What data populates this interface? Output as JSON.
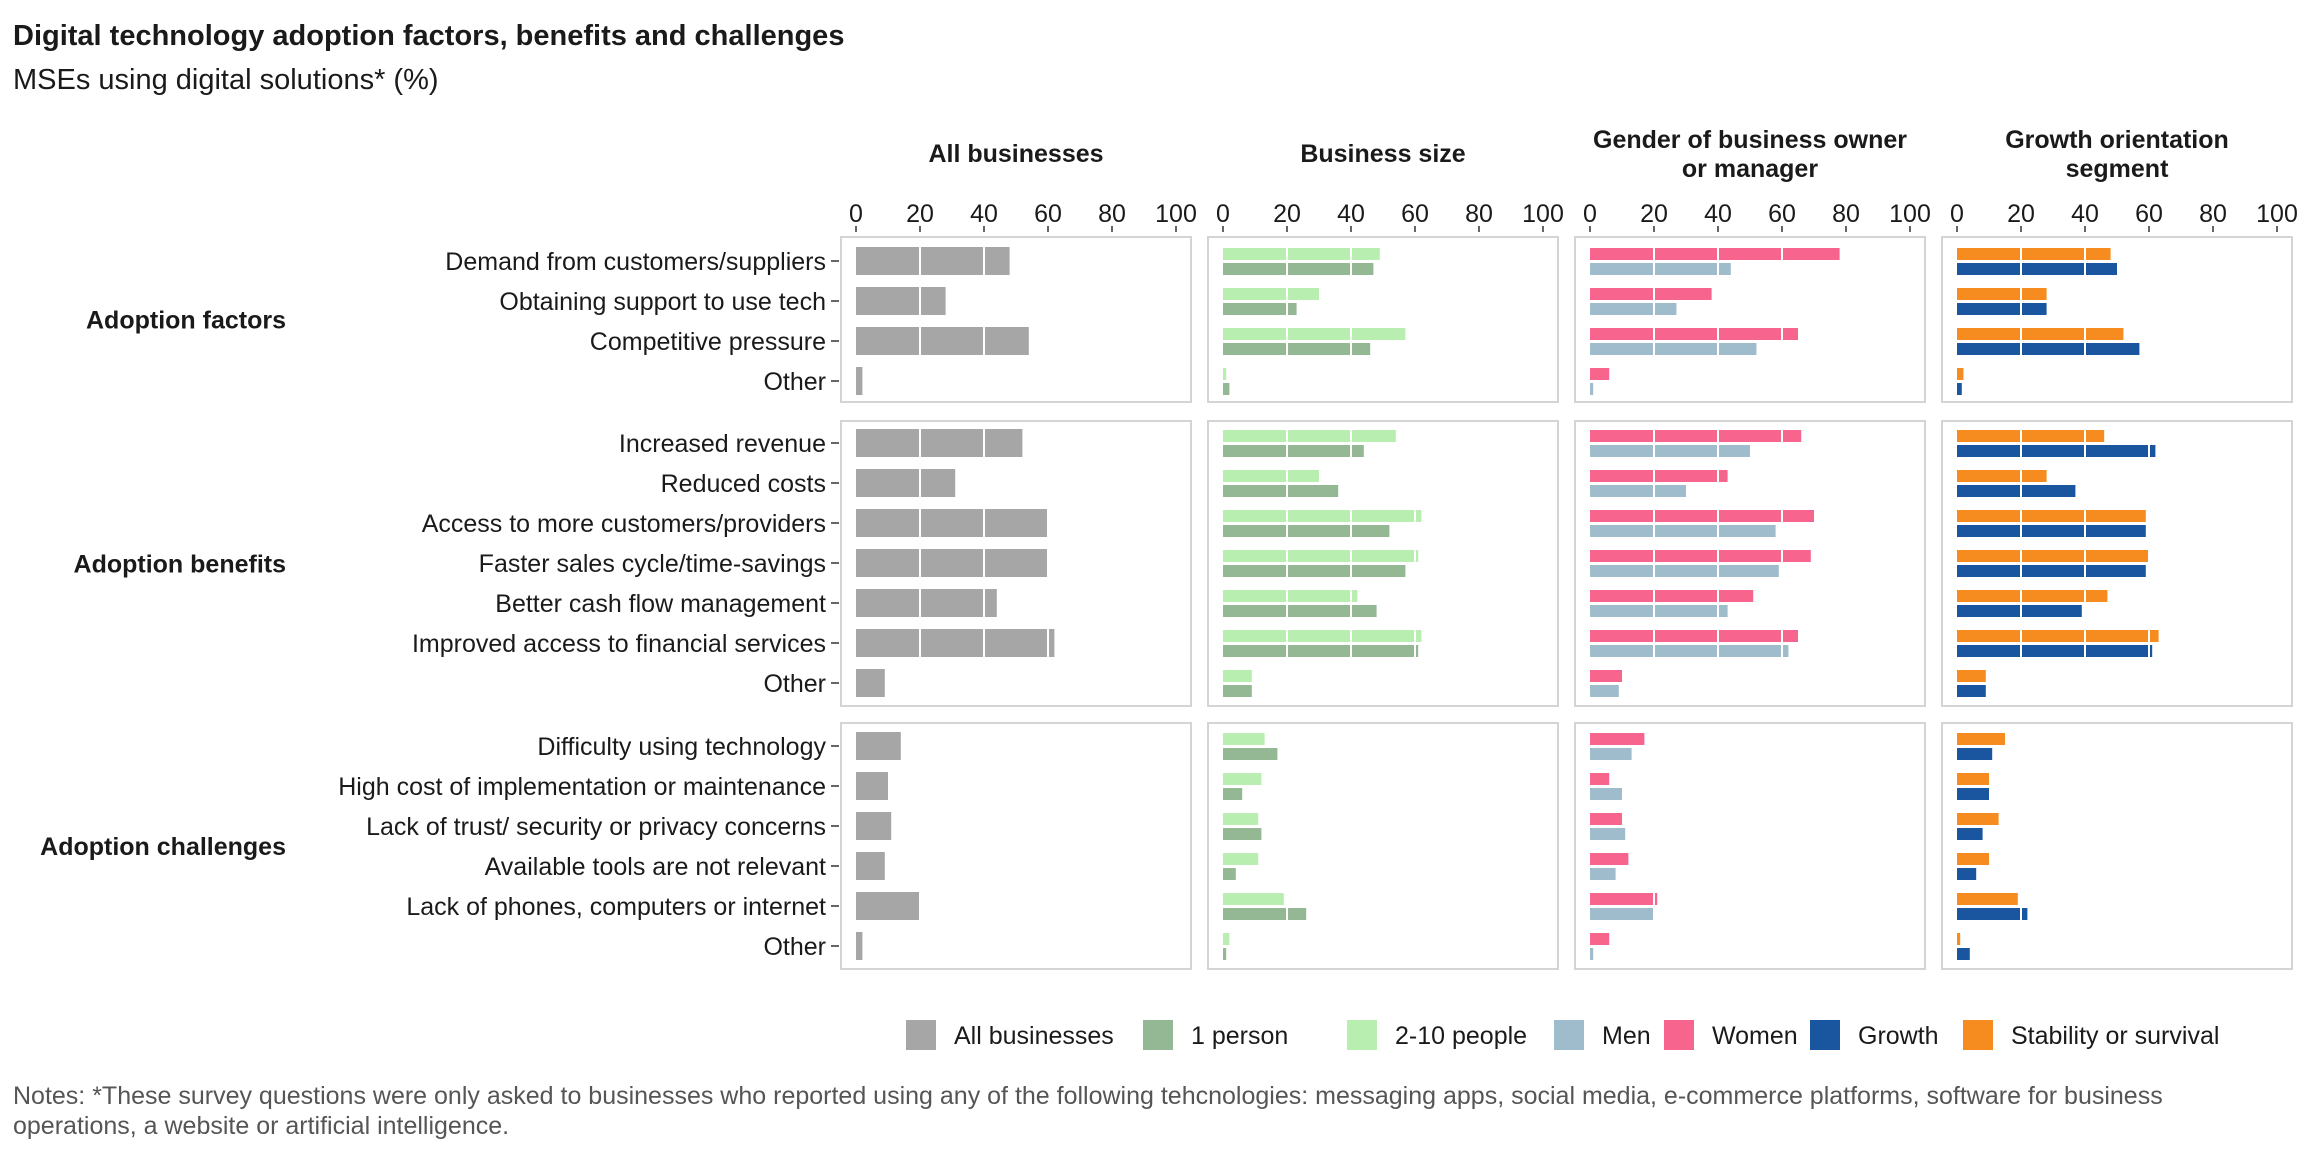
{
  "title": "Digital technology adoption factors, benefits and challenges",
  "subtitle": "MSEs using digital solutions* (%)",
  "notes": "Notes: *These survey questions were only asked to businesses who reported using any of the following tehcnologies: messaging apps, social media, e-commerce platforms, software for business operations, a website or artificial intelligence.",
  "colors": {
    "All businesses": "#a6a6a6",
    "1 person": "#93b893",
    "2-10 people": "#b9eeb1",
    "Men": "#9fbccc",
    "Women": "#f7658e",
    "Growth": "#1a56a0",
    "Stability or survival": "#f68b1f",
    "panel_border": "#d4d4d4",
    "grid": "#ffffff"
  },
  "chart_data": {
    "type": "bar",
    "orientation": "horizontal",
    "xlim": [
      0,
      100
    ],
    "x_ticks": [
      "0",
      "20",
      "40",
      "60",
      "80",
      "100"
    ],
    "facets": [
      {
        "title": "All businesses",
        "series": [
          "All businesses"
        ]
      },
      {
        "title": "Business size",
        "series": [
          "2-10 people",
          "1 person"
        ]
      },
      {
        "title": "Gender of business owner or manager",
        "series": [
          "Women",
          "Men"
        ]
      },
      {
        "title": "Growth orientation segment",
        "series": [
          "Stability or survival",
          "Growth"
        ]
      }
    ],
    "groups": [
      {
        "name": "Adoption factors",
        "categories": [
          "Demand from customers/suppliers",
          "Obtaining support to use tech",
          "Competitive pressure",
          "Other"
        ],
        "values": {
          "All businesses": [
            48,
            28,
            54,
            2
          ],
          "2-10 people": [
            49,
            30,
            57,
            1
          ],
          "1 person": [
            47,
            23,
            46,
            2
          ],
          "Women": [
            78,
            38,
            65,
            6
          ],
          "Men": [
            44,
            27,
            52,
            1
          ],
          "Stability or survival": [
            48,
            28,
            52,
            2
          ],
          "Growth": [
            50,
            28,
            57,
            1.5
          ]
        }
      },
      {
        "name": "Adoption benefits",
        "categories": [
          "Increased revenue",
          "Reduced costs",
          "Access to more customers/providers",
          "Faster sales cycle/time-savings",
          "Better cash flow management",
          "Improved access to financial services",
          "Other"
        ],
        "values": {
          "All businesses": [
            52,
            31,
            60,
            60,
            44,
            62,
            9
          ],
          "2-10 people": [
            54,
            30,
            62,
            61,
            42,
            62,
            9
          ],
          "1 person": [
            44,
            36,
            52,
            57,
            48,
            61,
            9
          ],
          "Women": [
            66,
            43,
            70,
            69,
            51,
            65,
            10
          ],
          "Men": [
            50,
            30,
            58,
            59,
            43,
            62,
            9
          ],
          "Stability or survival": [
            46,
            28,
            59,
            60,
            47,
            63,
            9
          ],
          "Growth": [
            62,
            37,
            59,
            59,
            39,
            61,
            9
          ]
        }
      },
      {
        "name": "Adoption challenges",
        "categories": [
          "Difficulty using technology",
          "High cost of implementation or maintenance",
          "Lack of trust/ security or privacy concerns",
          "Available tools are not relevant",
          "Lack of phones, computers or internet",
          "Other"
        ],
        "values": {
          "All businesses": [
            14,
            10,
            11,
            9,
            20,
            2
          ],
          "2-10 people": [
            13,
            12,
            11,
            11,
            19,
            2
          ],
          "1 person": [
            17,
            6,
            12,
            4,
            26,
            1
          ],
          "Women": [
            17,
            6,
            10,
            12,
            21,
            6
          ],
          "Men": [
            13,
            10,
            11,
            8,
            20,
            1
          ],
          "Stability or survival": [
            15,
            10,
            13,
            10,
            19,
            1
          ],
          "Growth": [
            11,
            10,
            8,
            6,
            22,
            4
          ]
        }
      }
    ],
    "legend": {
      "position": "bottom-right",
      "entries": [
        "All businesses",
        "1 person",
        "2-10 people",
        "Men",
        "Women",
        "Growth",
        "Stability or survival"
      ]
    },
    "grid": "vertical white lines inside bars"
  }
}
